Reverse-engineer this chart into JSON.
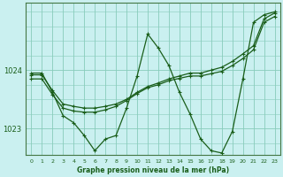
{
  "title": "Graphe pression niveau de la mer (hPa)",
  "bg_color": "#caf0f0",
  "grid_color": "#88ccbb",
  "line_color": "#1a5e1a",
  "xlim": [
    -0.5,
    23.5
  ],
  "ylim": [
    1022.55,
    1025.15
  ],
  "yticks": [
    1023,
    1024
  ],
  "xticks": [
    0,
    1,
    2,
    3,
    4,
    5,
    6,
    7,
    8,
    9,
    10,
    11,
    12,
    13,
    14,
    15,
    16,
    17,
    18,
    19,
    20,
    21,
    22,
    23
  ],
  "line1": [
    1023.95,
    1023.95,
    1023.62,
    1023.22,
    1023.1,
    1022.88,
    1022.62,
    1022.82,
    1022.88,
    1023.35,
    1023.9,
    1024.62,
    1024.38,
    1024.08,
    1023.62,
    1023.25,
    1022.82,
    1022.62,
    1022.58,
    1022.95,
    1023.85,
    1024.82,
    1024.95,
    1025.0
  ],
  "line2": [
    1023.92,
    1023.92,
    1023.65,
    1023.42,
    1023.38,
    1023.35,
    1023.35,
    1023.38,
    1023.42,
    1023.5,
    1023.62,
    1023.72,
    1023.78,
    1023.85,
    1023.9,
    1023.95,
    1023.95,
    1024.0,
    1024.05,
    1024.15,
    1024.28,
    1024.42,
    1024.88,
    1024.98
  ],
  "line3": [
    1023.85,
    1023.85,
    1023.58,
    1023.35,
    1023.3,
    1023.28,
    1023.28,
    1023.32,
    1023.38,
    1023.48,
    1023.6,
    1023.7,
    1023.75,
    1023.82,
    1023.86,
    1023.9,
    1023.9,
    1023.94,
    1023.98,
    1024.08,
    1024.2,
    1024.35,
    1024.82,
    1024.92
  ]
}
